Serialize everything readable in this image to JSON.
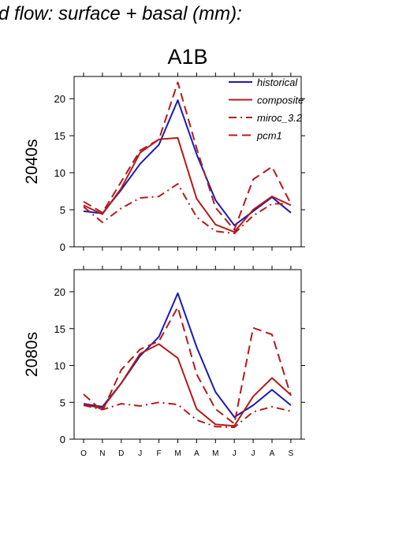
{
  "figure": {
    "suptitle": "d flow: surface + basal (mm):",
    "title": "A1B"
  },
  "chart_data": [
    {
      "type": "line",
      "title": "A1B",
      "ylabel": "2040s",
      "xlabel": "",
      "ylim": [
        0,
        23
      ],
      "yticks": [
        0,
        5,
        10,
        15,
        20
      ],
      "categories": [
        "O",
        "N",
        "D",
        "J",
        "F",
        "M",
        "A",
        "M",
        "J",
        "J",
        "A",
        "S"
      ],
      "grid": false,
      "legend": "top-right",
      "series": [
        {
          "name": "historical",
          "color": "#1a1ab4",
          "dash": "solid",
          "values": [
            4.8,
            4.5,
            7.7,
            11.2,
            13.8,
            19.8,
            12.5,
            6.3,
            2.9,
            4.8,
            6.7,
            4.6
          ]
        },
        {
          "name": "composite",
          "color": "#b41a1a",
          "dash": "solid",
          "values": [
            5.6,
            4.4,
            7.9,
            12.7,
            14.5,
            14.7,
            6.5,
            3.0,
            2.0,
            5.0,
            6.8,
            5.6
          ]
        },
        {
          "name": "miroc_3.2",
          "color": "#b41a1a",
          "dash": "dashdot",
          "values": [
            5.4,
            3.3,
            5.2,
            6.6,
            6.8,
            8.5,
            4.0,
            2.1,
            1.8,
            4.2,
            5.8,
            5.8
          ]
        },
        {
          "name": "pcm1",
          "color": "#b41a1a",
          "dash": "dash",
          "values": [
            6.1,
            4.6,
            8.8,
            13.0,
            14.5,
            22.2,
            13.3,
            5.3,
            2.3,
            9.1,
            10.8,
            5.8
          ]
        }
      ]
    },
    {
      "type": "line",
      "title": "",
      "ylabel": "2080s",
      "xlabel": "",
      "ylim": [
        0,
        23
      ],
      "yticks": [
        0,
        5,
        10,
        15,
        20
      ],
      "categories": [
        "O",
        "N",
        "D",
        "J",
        "F",
        "M",
        "A",
        "M",
        "J",
        "J",
        "A",
        "S"
      ],
      "grid": false,
      "series": [
        {
          "name": "historical",
          "color": "#1a1ab4",
          "dash": "solid",
          "values": [
            4.8,
            4.4,
            7.6,
            11.3,
            13.9,
            19.8,
            12.5,
            6.4,
            3.0,
            4.6,
            6.7,
            4.6
          ]
        },
        {
          "name": "composite",
          "color": "#b41a1a",
          "dash": "solid",
          "values": [
            4.7,
            4.2,
            7.6,
            11.6,
            12.9,
            11.0,
            4.1,
            2.0,
            1.8,
            5.8,
            8.3,
            6.0
          ]
        },
        {
          "name": "miroc_3.2",
          "color": "#b41a1a",
          "dash": "dashdot",
          "values": [
            4.6,
            4.0,
            4.8,
            4.5,
            5.0,
            4.7,
            2.6,
            1.7,
            1.6,
            3.7,
            4.4,
            3.8
          ]
        },
        {
          "name": "pcm1",
          "color": "#b41a1a",
          "dash": "dash",
          "values": [
            6.1,
            3.8,
            9.4,
            12.2,
            13.3,
            17.9,
            8.8,
            4.1,
            2.1,
            15.1,
            14.2,
            5.9
          ]
        }
      ]
    }
  ]
}
